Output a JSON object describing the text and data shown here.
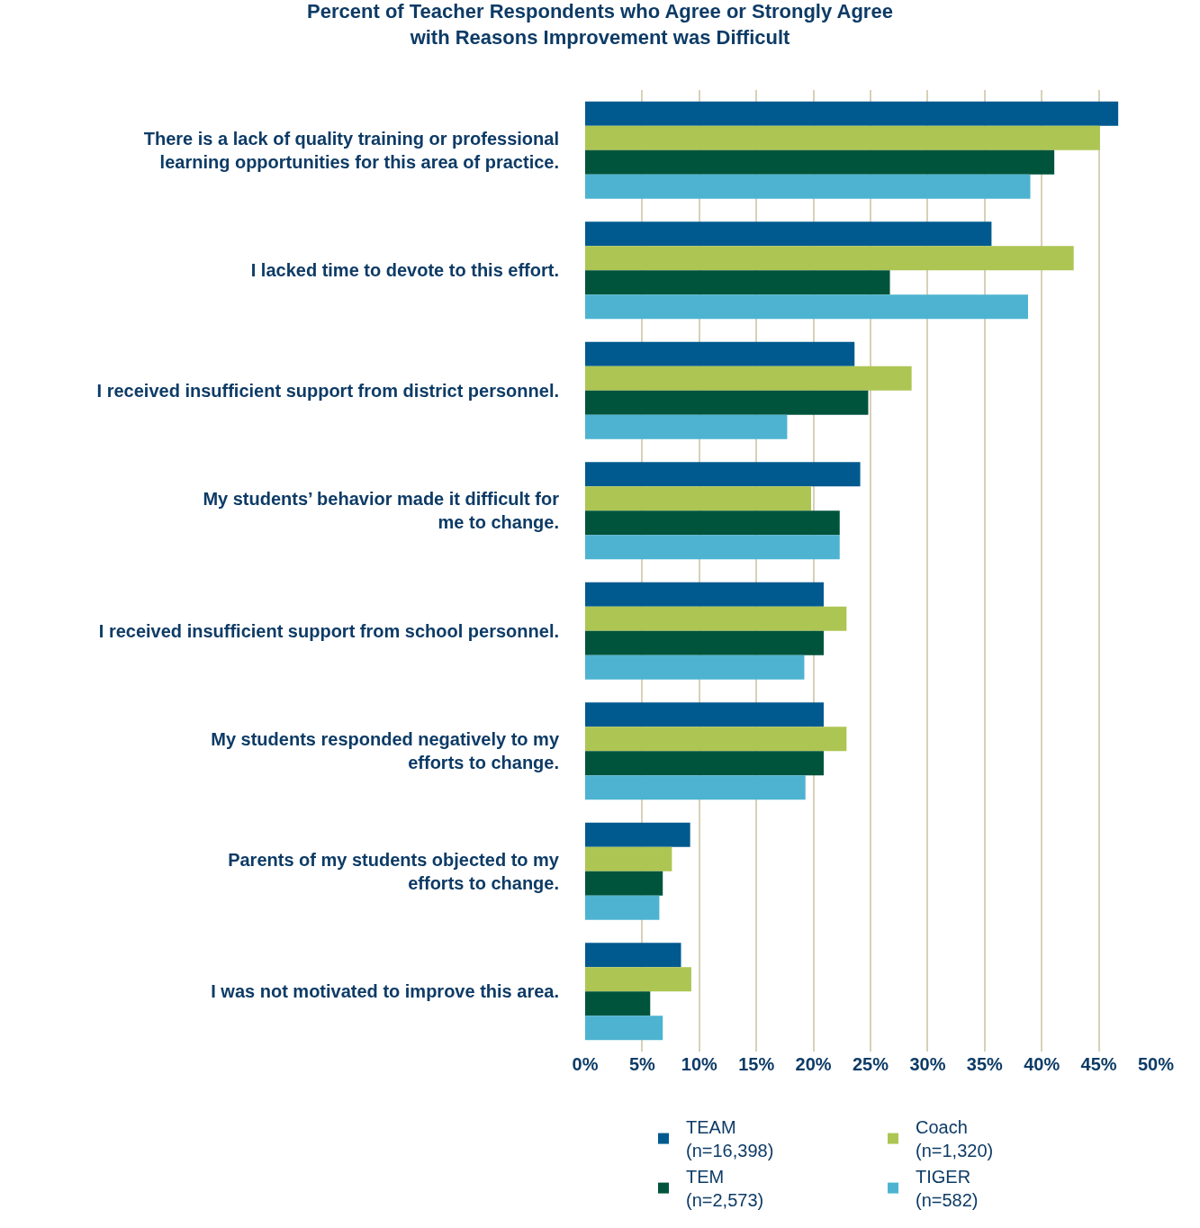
{
  "chart_data": {
    "type": "bar",
    "orientation": "horizontal",
    "title": "Percent of Teacher Respondents who Agree or Strongly Agree\nwith Reasons Improvement was Difficult",
    "categories": [
      "There is a lack of quality training or professional\nlearning opportunities for this area of practice.",
      "I lacked time to devote to this effort.",
      "I received insufficient support from district personnel.",
      "My students’ behavior made it difficult for\nme to change.",
      "I received insufficient support from school personnel.",
      "My students responded negatively to my\nefforts to change.",
      "Parents of my students objected to my\nefforts to change.",
      "I was not motivated to improve this area."
    ],
    "series": [
      {
        "name": "TEAM\n(n=16,398)",
        "color": "#005a8f",
        "values": [
          46.7,
          35.6,
          23.6,
          24.1,
          20.9,
          20.9,
          9.2,
          8.4
        ]
      },
      {
        "name": "Coach\n(n=1,320)",
        "color": "#adc553",
        "values": [
          45.1,
          42.8,
          28.6,
          19.8,
          22.9,
          22.9,
          7.6,
          9.3
        ]
      },
      {
        "name": "TEM\n(n=2,573)",
        "color": "#00543c",
        "values": [
          41.1,
          26.7,
          24.8,
          22.3,
          20.9,
          20.9,
          6.8,
          5.7
        ]
      },
      {
        "name": "TIGER\n(n=582)",
        "color": "#4db3d1",
        "values": [
          39.0,
          38.8,
          17.7,
          22.3,
          19.2,
          19.3,
          6.5,
          6.8
        ]
      }
    ],
    "xlim": [
      0,
      50
    ],
    "xticks": [
      {
        "value": 0,
        "label": "0%"
      },
      {
        "value": 5,
        "label": "5%"
      },
      {
        "value": 10,
        "label": "10%"
      },
      {
        "value": 15,
        "label": "15%"
      },
      {
        "value": 20,
        "label": "20%"
      },
      {
        "value": 25,
        "label": "25%"
      },
      {
        "value": 30,
        "label": "30%"
      },
      {
        "value": 35,
        "label": "35%"
      },
      {
        "value": 40,
        "label": "40%"
      },
      {
        "value": 45,
        "label": "45%"
      },
      {
        "value": 50,
        "label": "50%"
      }
    ],
    "grid": "x",
    "legend": "bottom"
  }
}
